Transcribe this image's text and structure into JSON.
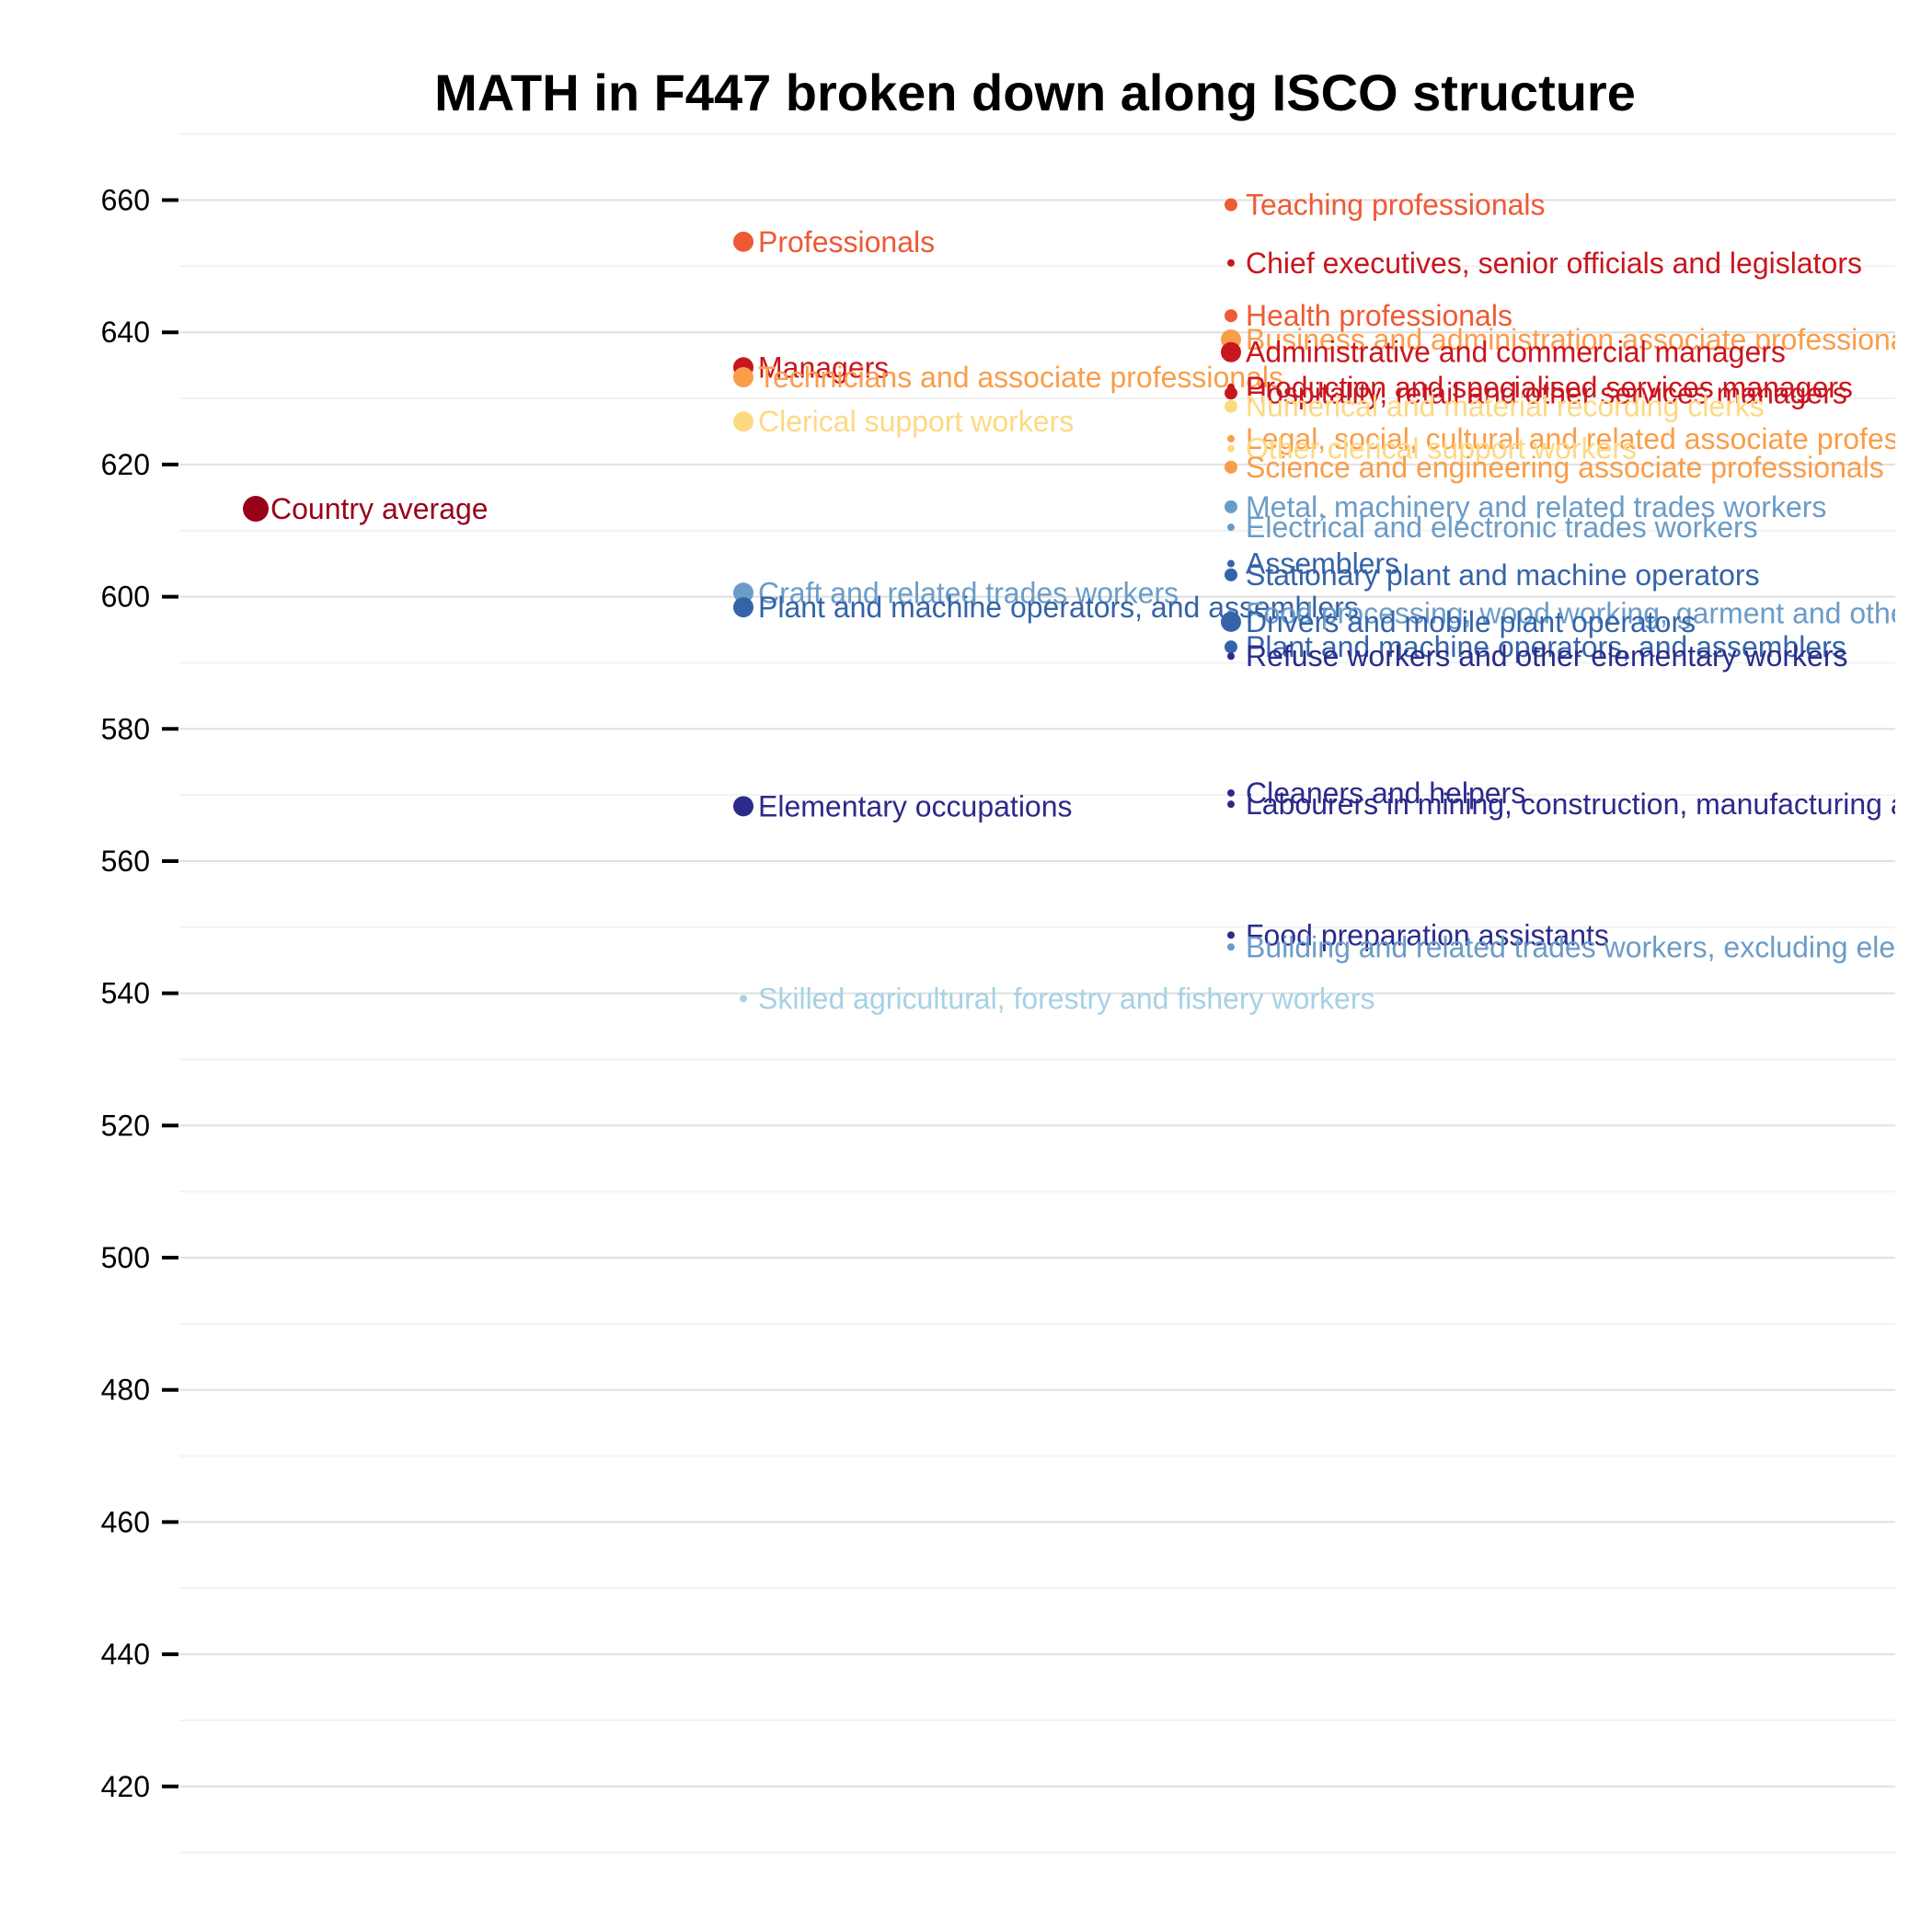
{
  "chart_data": {
    "type": "scatter",
    "title": "MATH in F447 broken down along ISCO structure",
    "xlabel": "",
    "ylabel": "",
    "ylim": [
      410,
      670
    ],
    "yticks": [
      420,
      440,
      460,
      480,
      500,
      520,
      540,
      560,
      580,
      600,
      620,
      640,
      660
    ],
    "grid": true,
    "legend": "none",
    "levels": [
      "country",
      "major group",
      "sub-major group"
    ],
    "points": [
      {
        "label": "Country average",
        "level": 0,
        "value": 613.3,
        "color": "#99001c",
        "weight": 3
      },
      {
        "label": "Professionals",
        "level": 1,
        "value": 653.7,
        "color": "#ed5a35",
        "weight": 2
      },
      {
        "label": "Managers",
        "level": 1,
        "value": 634.7,
        "color": "#c8161f",
        "weight": 2
      },
      {
        "label": "Technicians and associate professionals",
        "level": 1,
        "value": 633.2,
        "color": "#f99d4a",
        "weight": 2
      },
      {
        "label": "Clerical support workers",
        "level": 1,
        "value": 626.5,
        "color": "#fdd984",
        "weight": 2
      },
      {
        "label": "Craft and related trades workers",
        "level": 1,
        "value": 600.6,
        "color": "#6b9cc7",
        "weight": 2
      },
      {
        "label": "Plant and machine operators, and assemblers",
        "level": 1,
        "value": 598.4,
        "color": "#3563a8",
        "weight": 2
      },
      {
        "label": "Elementary occupations",
        "level": 1,
        "value": 568.3,
        "color": "#2b2b8a",
        "weight": 2
      },
      {
        "label": "Skilled agricultural, forestry and fishery workers",
        "level": 1,
        "value": 539.2,
        "color": "#a6d1e5",
        "weight": 0
      },
      {
        "label": "Teaching professionals",
        "level": 2,
        "value": 659.3,
        "color": "#ed5a35",
        "weight": 1
      },
      {
        "label": "Chief executives, senior officials and legislators",
        "level": 2,
        "value": 650.5,
        "color": "#c8161f",
        "weight": 0
      },
      {
        "label": "Health professionals",
        "level": 2,
        "value": 642.5,
        "color": "#ed5a35",
        "weight": 1
      },
      {
        "label": "Business and administration associate professionals",
        "level": 2,
        "value": 638.9,
        "color": "#f99d4a",
        "weight": 2
      },
      {
        "label": "Administrative and commercial managers",
        "level": 2,
        "value": 637.0,
        "color": "#c8161f",
        "weight": 2
      },
      {
        "label": "Production and specialised services managers",
        "level": 2,
        "value": 631.7,
        "color": "#c8161f",
        "weight": 0
      },
      {
        "label": "Hospitality, retail and other services managers",
        "level": 2,
        "value": 630.8,
        "color": "#c8161f",
        "weight": 1
      },
      {
        "label": "Numerical and material recording clerks",
        "level": 2,
        "value": 628.8,
        "color": "#fdd984",
        "weight": 1
      },
      {
        "label": "Legal, social, cultural and related associate professionals",
        "level": 2,
        "value": 623.9,
        "color": "#f99d4a",
        "weight": 0
      },
      {
        "label": "Other clerical support workers",
        "level": 2,
        "value": 622.4,
        "color": "#fdd984",
        "weight": 0
      },
      {
        "label": "Science and engineering associate professionals",
        "level": 2,
        "value": 619.6,
        "color": "#f99d4a",
        "weight": 1
      },
      {
        "label": "Metal, machinery and related trades workers",
        "level": 2,
        "value": 613.6,
        "color": "#6b9cc7",
        "weight": 1
      },
      {
        "label": "Electrical and electronic trades workers",
        "level": 2,
        "value": 610.5,
        "color": "#6b9cc7",
        "weight": 0
      },
      {
        "label": "Assemblers",
        "level": 2,
        "value": 605.0,
        "color": "#3563a8",
        "weight": 0
      },
      {
        "label": "Stationary plant and machine operators",
        "level": 2,
        "value": 603.3,
        "color": "#3563a8",
        "weight": 1
      },
      {
        "label": "Food processing, wood working, garment and other craft and related trades workers",
        "level": 2,
        "value": 597.5,
        "color": "#6b9cc7",
        "weight": 0
      },
      {
        "label": "Drivers and mobile plant operators",
        "level": 2,
        "value": 596.2,
        "color": "#3563a8",
        "weight": 2
      },
      {
        "label": "Plant and machine operators, and assemblers",
        "level": 2,
        "value": 592.4,
        "color": "#3563a8",
        "weight": 1
      },
      {
        "label": "Refuse workers and other elementary workers",
        "level": 2,
        "value": 591.0,
        "color": "#2b2b8a",
        "weight": 0
      },
      {
        "label": "Cleaners and helpers",
        "level": 2,
        "value": 570.3,
        "color": "#2b2b8a",
        "weight": 0
      },
      {
        "label": "Labourers in mining, construction, manufacturing and transport",
        "level": 2,
        "value": 568.6,
        "color": "#2b2b8a",
        "weight": 0
      },
      {
        "label": "Food preparation assistants",
        "level": 2,
        "value": 548.8,
        "color": "#2b2b8a",
        "weight": 0
      },
      {
        "label": "Building and related trades workers, excluding electricians",
        "level": 2,
        "value": 547.0,
        "color": "#6b9cc7",
        "weight": 0
      }
    ]
  }
}
